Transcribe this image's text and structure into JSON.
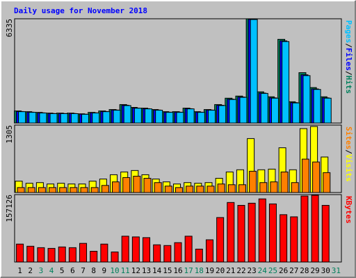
{
  "chart_data": {
    "type": "bar",
    "title": "Daily usage for November 2018",
    "categories": [
      "1",
      "2",
      "3",
      "4",
      "5",
      "6",
      "7",
      "8",
      "9",
      "10",
      "11",
      "12",
      "13",
      "14",
      "15",
      "16",
      "17",
      "18",
      "19",
      "20",
      "21",
      "22",
      "23",
      "24",
      "25",
      "26",
      "27",
      "28",
      "29",
      "30",
      "31"
    ],
    "category_colors": [
      "#000000",
      "#000000",
      "#00805c",
      "#00805c",
      "#000000",
      "#000000",
      "#000000",
      "#000000",
      "#000000",
      "#00805c",
      "#00805c",
      "#000000",
      "#000000",
      "#000000",
      "#000000",
      "#000000",
      "#00805c",
      "#00805c",
      "#000000",
      "#000000",
      "#000000",
      "#000000",
      "#000000",
      "#00805c",
      "#00805c",
      "#000000",
      "#000000",
      "#000000",
      "#000000",
      "#000000",
      "#00805c"
    ],
    "legend_separator": "/",
    "panels": [
      {
        "ylim": [
          0,
          6335
        ],
        "yticks": [
          6335
        ],
        "series": [
          {
            "name": "Hits",
            "color": "#00805c",
            "values": [
              733,
              690,
              646,
              603,
              603,
              603,
              560,
              646,
              733,
              819,
              1121,
              948,
              905,
              819,
              690,
              690,
              905,
              690,
              819,
              1121,
              1509,
              1638,
              6335,
              1896,
              1595,
              5086,
              1293,
              3060,
              2155,
              1595,
              null
            ]
          },
          {
            "name": "Files",
            "color": "#0000ff",
            "values": [
              700,
              660,
              620,
              580,
              580,
              580,
              540,
              620,
              700,
              790,
              1080,
              910,
              870,
              790,
              660,
              660,
              870,
              660,
              790,
              1080,
              1450,
              1580,
              6300,
              1820,
              1530,
              4990,
              1240,
              2930,
              2070,
              1530,
              null
            ]
          },
          {
            "name": "Pages",
            "color": "#00c0ff",
            "values": [
              690,
              650,
              610,
              570,
              570,
              570,
              530,
              610,
              690,
              780,
              1060,
              900,
              860,
              780,
              650,
              650,
              860,
              650,
              780,
              1060,
              1430,
              1560,
              6290,
              1800,
              1510,
              4950,
              1220,
              2880,
              2040,
              1510,
              null
            ]
          }
        ]
      },
      {
        "ylim": [
          0,
          1305
        ],
        "yticks": [
          1305
        ],
        "series": [
          {
            "name": "Visits",
            "color": "#ffff00",
            "values": [
              220,
              179,
              192,
              165,
              179,
              165,
              165,
              220,
              261,
              344,
              398,
              426,
              344,
              261,
              206,
              165,
              192,
              179,
              192,
              275,
              398,
              440,
              1044,
              440,
              453,
              866,
              440,
              1237,
              1278,
              687,
              null
            ]
          },
          {
            "name": "Sites",
            "color": "#ff8000",
            "values": [
              96,
              96,
              96,
              96,
              96,
              96,
              96,
              96,
              137,
              206,
              289,
              316,
              275,
              192,
              124,
              96,
              124,
              124,
              124,
              165,
              151,
              151,
              412,
              192,
              206,
              398,
              192,
              646,
              591,
              385,
              null
            ]
          }
        ]
      },
      {
        "ylim": [
          0,
          157126
        ],
        "yticks": [
          157126
        ],
        "series": [
          {
            "name": "KBytes",
            "color": "#ff0000",
            "values": [
              41800,
              36784,
              33440,
              31768,
              35112,
              33440,
              43472,
              25080,
              41800,
              23408,
              60192,
              58520,
              56848,
              40128,
              38456,
              45144,
              60192,
              30096,
              51832,
              103664,
              138776,
              132088,
              137104,
              147136,
              135432,
              110352,
              105336,
              153824,
              155496,
              132088,
              null
            ]
          }
        ]
      }
    ]
  }
}
